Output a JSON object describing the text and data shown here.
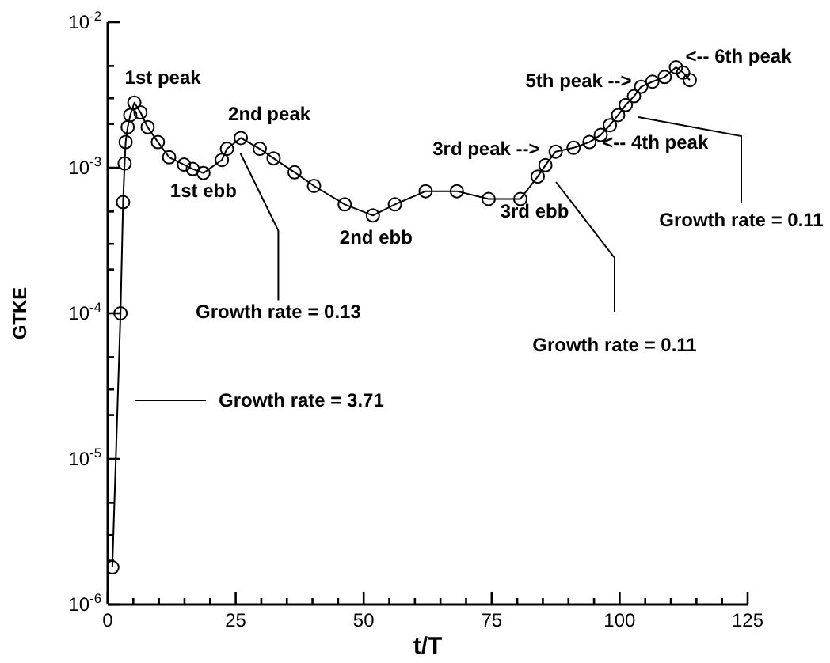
{
  "chart_data": {
    "type": "line",
    "xlabel": "t/T",
    "ylabel": "GTKE",
    "log": "y",
    "marker": "circle",
    "line_style": "solid",
    "xlim": [
      0,
      125
    ],
    "ylim": [
      1e-06,
      0.01
    ],
    "xticks": [
      0,
      {
        "value": 5,
        "label": null
      },
      {
        "value": 10,
        "label": null
      },
      {
        "value": 15,
        "label": null
      },
      {
        "value": 20,
        "label": null
      },
      25,
      {
        "value": 30,
        "label": null
      },
      {
        "value": 35,
        "label": null
      },
      {
        "value": 40,
        "label": null
      },
      {
        "value": 45,
        "label": null
      },
      50,
      {
        "value": 55,
        "label": null
      },
      {
        "value": 60,
        "label": null
      },
      {
        "value": 65,
        "label": null
      },
      {
        "value": 70,
        "label": null
      },
      75,
      {
        "value": 80,
        "label": null
      },
      {
        "value": 85,
        "label": null
      },
      {
        "value": 90,
        "label": null
      },
      {
        "value": 95,
        "label": null
      },
      100,
      {
        "value": 105,
        "label": null
      },
      {
        "value": 110,
        "label": null
      },
      {
        "value": 115,
        "label": null
      },
      {
        "value": 120,
        "label": null
      },
      125
    ],
    "yticks": [
      {
        "value": 1e-06,
        "label": "10$^{-6}$"
      },
      {
        "value": 2e-06,
        "label": null
      },
      {
        "value": 3e-06,
        "label": null
      },
      {
        "value": 5e-06,
        "label": null
      },
      {
        "value": 1e-05,
        "label": "10$^{-5}$"
      },
      {
        "value": 2e-05,
        "label": null
      },
      {
        "value": 3e-05,
        "label": null
      },
      {
        "value": 5e-05,
        "label": null
      },
      {
        "value": 0.0001,
        "label": "10$^{-4}$"
      },
      {
        "value": 0.0002,
        "label": null
      },
      {
        "value": 0.0003,
        "label": null
      },
      {
        "value": 0.0005,
        "label": null
      },
      {
        "value": 0.001,
        "label": "10$^{-3}$"
      },
      {
        "value": 0.002,
        "label": null
      },
      {
        "value": 0.003,
        "label": null
      },
      {
        "value": 0.005,
        "label": null
      },
      {
        "value": 0.01,
        "label": "10$^{-2}$"
      }
    ],
    "series": [
      {
        "color": "#000000",
        "x": [
          0.9,
          2.5,
          3.0,
          3.3,
          3.5,
          3.9,
          4.4,
          5.2,
          6.4,
          7.8,
          9.8,
          12,
          14.9,
          16.6,
          18.7,
          22.3,
          23.3,
          26,
          29.7,
          32.4,
          36.5,
          40.3,
          46.3,
          51.8,
          56.1,
          62.1,
          68.2,
          74.4,
          80.6,
          84,
          85.5,
          87.5,
          91,
          94.1,
          96.3,
          98.1,
          99.7,
          101.2,
          102.8,
          104.2,
          106.4,
          108.8,
          111,
          112.4,
          113.7
        ],
        "values": [
          1.8e-06,
          0.0001,
          0.00058,
          0.00107,
          0.0015,
          0.0019,
          0.0023,
          0.0028,
          0.0024,
          0.0019,
          0.0015,
          0.00118,
          0.00105,
          0.00098,
          0.00092,
          0.00113,
          0.00135,
          0.0016,
          0.00135,
          0.00116,
          0.00093,
          0.00075,
          0.00056,
          0.00047,
          0.00056,
          0.00069,
          0.00069,
          0.00061,
          0.00061,
          0.00087,
          0.00104,
          0.00129,
          0.00137,
          0.0015,
          0.00168,
          0.00196,
          0.0023,
          0.0027,
          0.0031,
          0.0036,
          0.0039,
          0.0042,
          0.0049,
          0.0045,
          0.004
        ]
      }
    ],
    "annotations": [
      {
        "text": "1st peak",
        "x": 5.2,
        "y": 0.0028
      },
      {
        "text": "2nd peak",
        "x": 26,
        "y": 0.0016
      },
      {
        "text": "1st ebb",
        "x": 18.7,
        "y": 0.00092
      },
      {
        "text": "2nd ebb",
        "x": 51.8,
        "y": 0.00047
      },
      {
        "text": "3rd ebb",
        "x": 80.6,
        "y": 0.00061
      },
      {
        "text": "3rd peak -->",
        "x": 87.5,
        "y": 0.00129
      },
      {
        "text": "<-- 4th peak",
        "x": 94.1,
        "y": 0.0015
      },
      {
        "text": "5th peak -->",
        "x": 104.2,
        "y": 0.0036
      },
      {
        "text": "<-- 6th peak",
        "x": 111,
        "y": 0.0049
      },
      "Growth rate = 3.71",
      {
        "text": "Growth rate = 0.13",
        "x": 25.9,
        "y": 0.00126
      },
      "Growth rate = 0.11",
      "Growth rate = 0.11"
    ]
  }
}
